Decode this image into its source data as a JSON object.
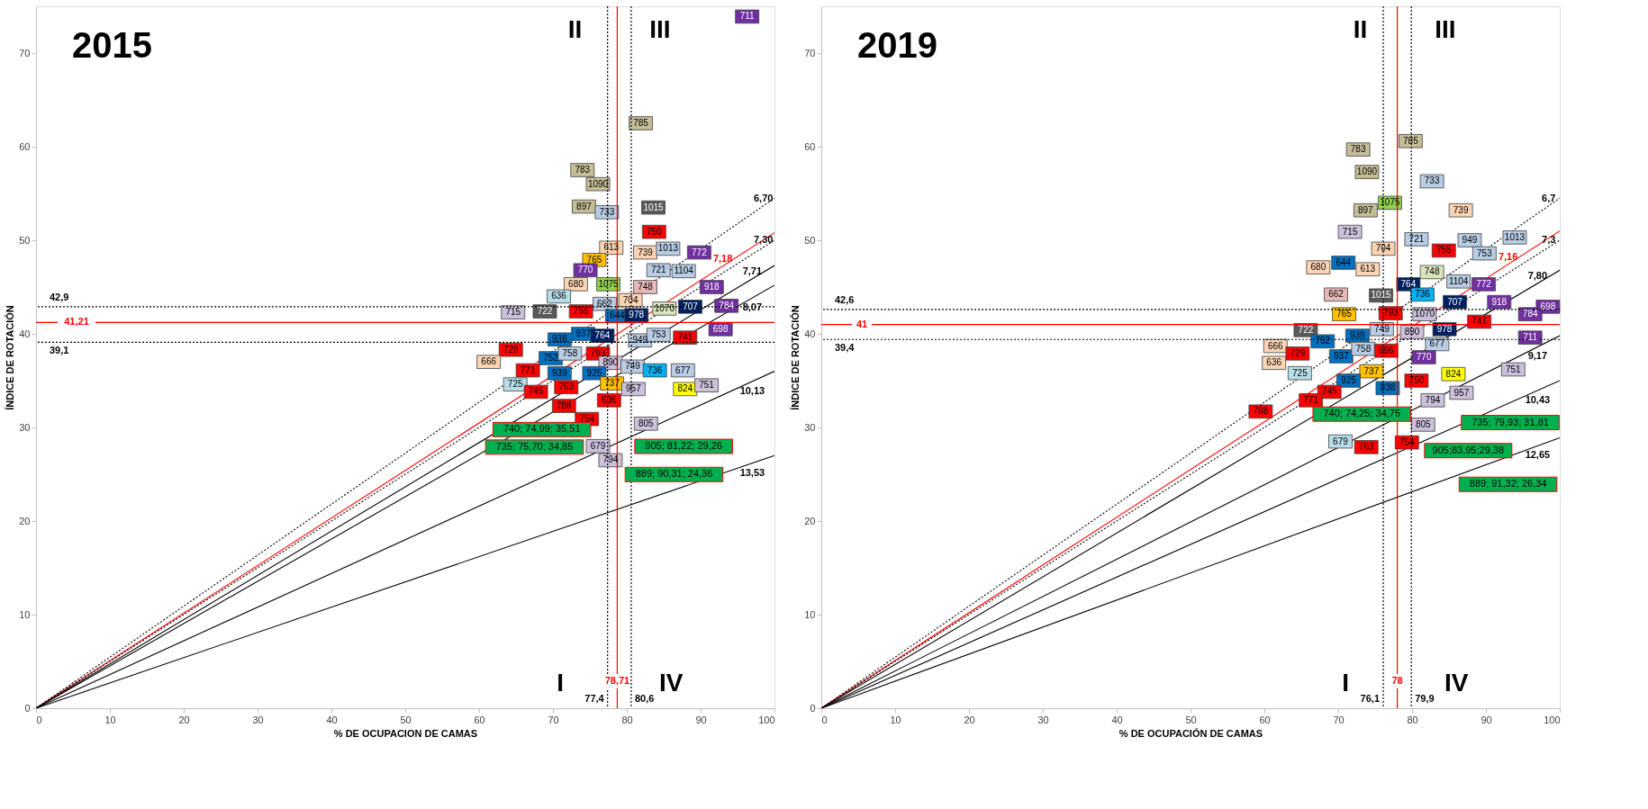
{
  "chart_data": [
    {
      "type": "scatter",
      "title": "2015",
      "xlabel": "% DE OCUPACION DE CAMAS",
      "ylabel": "ÍNDICE DE ROTACIÓN",
      "xlim": [
        0,
        100
      ],
      "ylim": [
        0,
        75
      ],
      "xticks": [
        0,
        10,
        20,
        30,
        40,
        50,
        60,
        70,
        80,
        90,
        100
      ],
      "yticks": [
        0,
        10,
        20,
        30,
        40,
        50,
        60,
        70
      ],
      "grid": false,
      "series": [
        {
          "type": "line",
          "name": "6,70",
          "color": "#000000",
          "line_style": "dotted",
          "x": [
            0,
            100
          ],
          "values": [
            0,
            54.5
          ]
        },
        {
          "type": "line",
          "name": "7,18",
          "color": "#ff0000",
          "line_style": "solid",
          "x": [
            0,
            100
          ],
          "values": [
            0,
            50.8
          ]
        },
        {
          "type": "line",
          "name": "7,30",
          "color": "#000000",
          "line_style": "dotted",
          "x": [
            0,
            100
          ],
          "values": [
            0,
            50.0
          ]
        },
        {
          "type": "line",
          "name": "7,71",
          "color": "#000000",
          "line_style": "solid",
          "x": [
            0,
            100
          ],
          "values": [
            0,
            47.3
          ]
        },
        {
          "type": "line",
          "name": "8,07",
          "color": "#000000",
          "line_style": "solid",
          "x": [
            0,
            100
          ],
          "values": [
            0,
            45.2
          ]
        },
        {
          "type": "line",
          "name": "10,13",
          "color": "#000000",
          "line_style": "solid",
          "x": [
            0,
            100
          ],
          "values": [
            0,
            36.0
          ]
        },
        {
          "type": "line",
          "name": "13,53",
          "color": "#000000",
          "line_style": "solid",
          "x": [
            0,
            100
          ],
          "values": [
            0,
            27.0
          ]
        },
        {
          "marker": "square",
          "x": [
            96.3,
            81.9,
            74.0,
            76.1,
            74.2,
            77.3,
            83.6,
            83.7,
            77.9,
            75.6,
            82.5,
            85.6,
            89.8,
            74.4,
            84.3,
            87.7,
            73.1,
            77.5,
            82.5,
            91.5,
            70.8,
            77.0,
            80.5,
            64.6,
            68.9,
            73.8,
            85.1,
            88.6,
            93.5,
            78.7,
            81.3,
            92.7,
            74.1,
            76.7,
            70.9,
            81.8,
            84.3,
            87.9,
            64.3,
            61.3,
            69.7,
            72.3,
            76.1,
            77.8,
            66.6,
            70.9,
            75.6,
            80.8,
            83.8,
            87.6,
            64.9,
            67.7,
            71.8,
            78.0,
            80.9,
            87.9,
            90.8,
            77.6,
            71.5,
            74.6,
            82.6,
            76.1,
            77.8
          ],
          "values": [
            73.9,
            62.5,
            57.5,
            56.0,
            53.6,
            53.0,
            53.5,
            50.9,
            49.2,
            47.9,
            48.7,
            49.1,
            48.7,
            46.8,
            46.8,
            46.7,
            45.3,
            45.3,
            45.0,
            45.0,
            44.0,
            43.2,
            43.6,
            42.3,
            42.4,
            42.4,
            42.7,
            42.9,
            43.0,
            41.9,
            42.0,
            40.5,
            40.0,
            39.8,
            39.4,
            39.3,
            39.9,
            39.6,
            38.3,
            37.0,
            37.4,
            37.9,
            37.9,
            36.9,
            36.1,
            35.8,
            35.8,
            36.5,
            36.1,
            36.1,
            34.6,
            33.8,
            34.3,
            34.7,
            34.1,
            34.1,
            34.5,
            32.9,
            32.3,
            30.9,
            30.4,
            28.0,
            26.5
          ],
          "colors": [
            "#7030a0",
            "#c4bd97",
            "#c4bd97",
            "#c4bd97",
            "#c4bd97",
            "#b8cce4",
            "#595959",
            "#ff0000",
            "#fbd4b4",
            "#ffc000",
            "#fbd4b4",
            "#b8cce4",
            "#7030a0",
            "#7030a0",
            "#b8cce4",
            "#b8cce4",
            "#fbd4b4",
            "#92d050",
            "#e6b9b8",
            "#7030a0",
            "#b7dee8",
            "#b8cce4",
            "#fbd4b4",
            "#ccc0da",
            "#595959",
            "#ff0000",
            "#d8e4bc",
            "#002060",
            "#7030a0",
            "#0070c0",
            "#002060",
            "#7030a0",
            "#0070c0",
            "#002060",
            "#0070c0",
            "#b8cce4",
            "#b8cce4",
            "#ff0000",
            "#ff0000",
            "#fbd4b4",
            "#0070c0",
            "#b8cce4",
            "#ff0000",
            "#ccc0da",
            "#ff0000",
            "#0070c0",
            "#0070c0",
            "#b8cce4",
            "#00b0f0",
            "#b8cce4",
            "#b7dee8",
            "#ff0000",
            "#ff0000",
            "#ffc000",
            "#ccc0da",
            "#ffff00",
            "#ccc0da",
            "#ff0000",
            "#ff0000",
            "#ff0000",
            "#ccc0da",
            "#ccc0da",
            "#ccc0da"
          ]
        }
      ],
      "ref_lines": [
        {
          "axis": "x",
          "value": 77.4,
          "label": "77,4",
          "color": "#000000",
          "line_style": "dotted"
        },
        {
          "axis": "x",
          "value": 78.71,
          "label": "78,71",
          "color": "#ff0000",
          "line_style": "solid"
        },
        {
          "axis": "x",
          "value": 80.6,
          "label": "80,6",
          "color": "#000000",
          "line_style": "dotted"
        },
        {
          "axis": "y",
          "value": 42.9,
          "label": "42,9",
          "color": "#000000",
          "line_style": "dotted"
        },
        {
          "axis": "y",
          "value": 41.21,
          "label": "41,21",
          "color": "#ff0000",
          "line_style": "solid"
        },
        {
          "axis": "y",
          "value": 39.1,
          "label": "39,1",
          "color": "#000000",
          "line_style": "dotted"
        }
      ],
      "annotations": [
        "I",
        "II",
        "III",
        "IV",
        "740; 74,99; 35,51",
        "735; 75,70; 34,85",
        "905; 81,22; 29,26",
        "889; 90,31; 24,36",
        {
          "text": "711",
          "x": 96.3,
          "y": 73.9
        },
        {
          "text": "785",
          "x": 81.9,
          "y": 62.5
        },
        {
          "text": "783",
          "x": 74.0,
          "y": 57.5
        },
        {
          "text": "1090",
          "x": 76.1,
          "y": 56.0
        },
        {
          "text": "897",
          "x": 74.2,
          "y": 53.6
        },
        {
          "text": "733",
          "x": 77.3,
          "y": 53.0
        },
        {
          "text": "1015",
          "x": 83.6,
          "y": 53.5
        },
        {
          "text": "750",
          "x": 83.7,
          "y": 50.9
        },
        {
          "text": "613",
          "x": 77.9,
          "y": 49.2
        },
        {
          "text": "765",
          "x": 75.6,
          "y": 47.9
        },
        {
          "text": "739",
          "x": 82.5,
          "y": 48.7
        },
        {
          "text": "1013",
          "x": 85.6,
          "y": 49.1
        },
        {
          "text": "772",
          "x": 89.8,
          "y": 48.7
        },
        {
          "text": "770",
          "x": 74.4,
          "y": 46.8
        },
        {
          "text": "721",
          "x": 84.3,
          "y": 46.8
        },
        {
          "text": "1104",
          "x": 87.7,
          "y": 46.7
        },
        {
          "text": "680",
          "x": 73.1,
          "y": 45.3
        },
        {
          "text": "1075",
          "x": 77.5,
          "y": 45.3
        },
        {
          "text": "748",
          "x": 82.5,
          "y": 45.0
        },
        {
          "text": "918",
          "x": 91.5,
          "y": 45.0
        },
        {
          "text": "636",
          "x": 70.8,
          "y": 44.0
        },
        {
          "text": "662",
          "x": 77.0,
          "y": 43.2
        },
        {
          "text": "704",
          "x": 80.5,
          "y": 43.6
        },
        {
          "text": "715",
          "x": 64.6,
          "y": 42.3
        },
        {
          "text": "722",
          "x": 68.9,
          "y": 42.4
        },
        {
          "text": "755",
          "x": 73.8,
          "y": 42.4
        },
        {
          "text": "1070",
          "x": 85.1,
          "y": 42.7
        },
        {
          "text": "707",
          "x": 88.6,
          "y": 42.9
        },
        {
          "text": "784",
          "x": 93.5,
          "y": 43.0
        },
        {
          "text": "644",
          "x": 78.7,
          "y": 41.9
        },
        {
          "text": "978",
          "x": 81.3,
          "y": 42.0
        },
        {
          "text": "698",
          "x": 92.7,
          "y": 40.5
        },
        {
          "text": "937",
          "x": 74.1,
          "y": 40.0
        },
        {
          "text": "764",
          "x": 76.7,
          "y": 39.8
        },
        {
          "text": "938",
          "x": 70.9,
          "y": 39.4
        },
        {
          "text": "949",
          "x": 81.8,
          "y": 39.3
        },
        {
          "text": "753",
          "x": 84.3,
          "y": 39.9
        },
        {
          "text": "741",
          "x": 87.9,
          "y": 39.6
        },
        {
          "text": "729",
          "x": 64.3,
          "y": 38.3
        },
        {
          "text": "666",
          "x": 61.3,
          "y": 37.0
        },
        {
          "text": "752",
          "x": 69.7,
          "y": 37.4
        },
        {
          "text": "758",
          "x": 72.3,
          "y": 37.9
        },
        {
          "text": "793",
          "x": 76.1,
          "y": 37.9
        },
        {
          "text": "890",
          "x": 77.8,
          "y": 36.9
        },
        {
          "text": "771",
          "x": 66.6,
          "y": 36.1
        },
        {
          "text": "939",
          "x": 70.9,
          "y": 35.8
        },
        {
          "text": "925",
          "x": 75.6,
          "y": 35.8
        },
        {
          "text": "749",
          "x": 80.8,
          "y": 36.5
        },
        {
          "text": "736",
          "x": 83.8,
          "y": 36.1
        },
        {
          "text": "677",
          "x": 87.6,
          "y": 36.1
        },
        {
          "text": "725",
          "x": 64.9,
          "y": 34.6
        },
        {
          "text": "745",
          "x": 67.7,
          "y": 33.8
        },
        {
          "text": "763",
          "x": 71.8,
          "y": 34.3
        },
        {
          "text": "737",
          "x": 78.0,
          "y": 34.7
        },
        {
          "text": "957",
          "x": 80.9,
          "y": 34.1
        },
        {
          "text": "824",
          "x": 87.9,
          "y": 34.1
        },
        {
          "text": "751",
          "x": 90.8,
          "y": 34.5
        },
        {
          "text": "696",
          "x": 77.6,
          "y": 32.9
        },
        {
          "text": "788",
          "x": 71.5,
          "y": 32.3
        },
        {
          "text": "754",
          "x": 74.6,
          "y": 30.9
        },
        {
          "text": "805",
          "x": 82.6,
          "y": 30.4
        },
        {
          "text": "679",
          "x": 76.1,
          "y": 28.0
        },
        {
          "text": "794",
          "x": 77.8,
          "y": 26.5
        }
      ]
    },
    {
      "type": "scatter",
      "title": "2019",
      "xlabel": "% DE OCUPACIÓN  DE CAMAS",
      "ylabel": "ÍNDICE DE ROTACIÓN",
      "xlim": [
        0,
        100
      ],
      "ylim": [
        0,
        75
      ],
      "xticks": [
        0,
        10,
        20,
        30,
        40,
        50,
        60,
        70,
        80,
        90,
        100
      ],
      "yticks": [
        0,
        10,
        20,
        30,
        40,
        50,
        60,
        70
      ],
      "grid": false,
      "series": [
        {
          "type": "line",
          "name": "6,7",
          "color": "#000000",
          "line_style": "dotted",
          "x": [
            0,
            100
          ],
          "values": [
            0,
            54.5
          ]
        },
        {
          "type": "line",
          "name": "7,16",
          "color": "#ff0000",
          "line_style": "solid",
          "x": [
            0,
            100
          ],
          "values": [
            0,
            51.0
          ]
        },
        {
          "type": "line",
          "name": "7,3",
          "color": "#000000",
          "line_style": "dotted",
          "x": [
            0,
            100
          ],
          "values": [
            0,
            50.0
          ]
        },
        {
          "type": "line",
          "name": "7,80",
          "color": "#000000",
          "line_style": "solid",
          "x": [
            0,
            100
          ],
          "values": [
            0,
            46.8
          ]
        },
        {
          "type": "line",
          "name": "9,17",
          "color": "#000000",
          "line_style": "solid",
          "x": [
            0,
            100
          ],
          "values": [
            0,
            39.8
          ]
        },
        {
          "type": "line",
          "name": "10,43",
          "color": "#000000",
          "line_style": "solid",
          "x": [
            0,
            100
          ],
          "values": [
            0,
            35.0
          ]
        },
        {
          "type": "line",
          "name": "12,65",
          "color": "#000000",
          "line_style": "solid",
          "x": [
            0,
            100
          ],
          "values": [
            0,
            28.9
          ]
        },
        {
          "marker": "square",
          "x": [
            79.8,
            72.7,
            73.9,
            82.7,
            77.0,
            73.7,
            71.6,
            86.6,
            80.6,
            87.8,
            93.9,
            84.3,
            89.8,
            76.1,
            67.3,
            70.7,
            74.0,
            82.7,
            79.5,
            86.3,
            89.7,
            69.7,
            75.8,
            81.4,
            85.8,
            91.8,
            98.4,
            70.8,
            77.1,
            81.7,
            96.0,
            89.1,
            65.6,
            75.9,
            80.0,
            84.4,
            96.0,
            67.9,
            72.6,
            61.5,
            64.5,
            70.4,
            73.4,
            76.5,
            83.4,
            81.6,
            61.3,
            64.8,
            74.5,
            85.6,
            93.7,
            71.4,
            80.6,
            76.7,
            86.7,
            68.8,
            66.3,
            82.8,
            59.5,
            81.5,
            70.3,
            73.8,
            79.3
          ],
          "values": [
            60.6,
            59.7,
            57.3,
            56.3,
            54.0,
            53.2,
            50.9,
            53.2,
            50.1,
            50.0,
            50.3,
            48.9,
            48.6,
            49.1,
            47.1,
            47.6,
            46.9,
            46.6,
            45.3,
            45.6,
            45.3,
            44.2,
            44.1,
            44.2,
            43.4,
            43.4,
            42.9,
            42.1,
            42.2,
            42.1,
            42.1,
            41.3,
            40.4,
            40.5,
            40.2,
            40.5,
            39.6,
            39.2,
            39.8,
            38.7,
            37.9,
            37.6,
            38.4,
            38.2,
            38.9,
            37.5,
            36.9,
            35.8,
            36.0,
            35.7,
            36.2,
            35.0,
            35.0,
            34.2,
            33.7,
            33.8,
            32.9,
            32.9,
            31.7,
            30.3,
            28.5,
            27.9,
            28.4
          ],
          "colors": [
            "#c4bd97",
            "#c4bd97",
            "#c4bd97",
            "#b8cce4",
            "#92d050",
            "#c4bd97",
            "#ccc0da",
            "#fbd4b4",
            "#b8cce4",
            "#b8cce4",
            "#b8cce4",
            "#ff0000",
            "#b8cce4",
            "#fbd4b4",
            "#fbd4b4",
            "#0070c0",
            "#fbd4b4",
            "#d8e4bc",
            "#002060",
            "#b8cce4",
            "#7030a0",
            "#e6b9b8",
            "#595959",
            "#00b0f0",
            "#002060",
            "#7030a0",
            "#7030a0",
            "#ffc000",
            "#ff0000",
            "#ccc0da",
            "#7030a0",
            "#ff0000",
            "#595959",
            "#b8cce4",
            "#ccc0da",
            "#002060",
            "#7030a0",
            "#0070c0",
            "#0070c0",
            "#fbd4b4",
            "#ff0000",
            "#0070c0",
            "#b8cce4",
            "#ff0000",
            "#b8cce4",
            "#7030a0",
            "#fbd4b4",
            "#b7dee8",
            "#ffc000",
            "#ffff00",
            "#ccc0da",
            "#0070c0",
            "#ff0000",
            "#0070c0",
            "#ccc0da",
            "#ff0000",
            "#ff0000",
            "#ccc0da",
            "#ff0000",
            "#ccc0da",
            "#b7dee8",
            "#ff0000",
            "#ff0000"
          ]
        }
      ],
      "ref_lines": [
        {
          "axis": "x",
          "value": 76.1,
          "label": "76,1",
          "color": "#000000",
          "line_style": "dotted"
        },
        {
          "axis": "x",
          "value": 78,
          "label": "78",
          "color": "#ff0000",
          "line_style": "solid"
        },
        {
          "axis": "x",
          "value": 79.9,
          "label": "79,9",
          "color": "#000000",
          "line_style": "dotted"
        },
        {
          "axis": "y",
          "value": 42.6,
          "label": "42,6",
          "color": "#000000",
          "line_style": "dotted"
        },
        {
          "axis": "y",
          "value": 41,
          "label": "41",
          "color": "#ff0000",
          "line_style": "solid"
        },
        {
          "axis": "y",
          "value": 39.4,
          "label": "39,4",
          "color": "#000000",
          "line_style": "dotted"
        }
      ],
      "annotations": [
        "I",
        "II",
        "III",
        "IV",
        "740; 74,25; 34,75",
        "735; 79,93; 31,81",
        "905;83,95;29,38",
        "889; 91,32; 26,34",
        {
          "text": "785",
          "x": 79.8,
          "y": 60.6
        },
        {
          "text": "783",
          "x": 72.7,
          "y": 59.7
        },
        {
          "text": "1090",
          "x": 73.9,
          "y": 57.3
        },
        {
          "text": "733",
          "x": 82.7,
          "y": 56.3
        },
        {
          "text": "1075",
          "x": 77.0,
          "y": 54.0
        },
        {
          "text": "897",
          "x": 73.7,
          "y": 53.2
        },
        {
          "text": "715",
          "x": 71.6,
          "y": 50.9
        },
        {
          "text": "739",
          "x": 86.6,
          "y": 53.2
        },
        {
          "text": "721",
          "x": 80.6,
          "y": 50.1
        },
        {
          "text": "949",
          "x": 87.8,
          "y": 50.0
        },
        {
          "text": "1013",
          "x": 93.9,
          "y": 50.3
        },
        {
          "text": "755",
          "x": 84.3,
          "y": 48.9
        },
        {
          "text": "753",
          "x": 89.8,
          "y": 48.6
        },
        {
          "text": "704",
          "x": 76.1,
          "y": 49.1
        },
        {
          "text": "680",
          "x": 67.3,
          "y": 47.1
        },
        {
          "text": "644",
          "x": 70.7,
          "y": 47.6
        },
        {
          "text": "613",
          "x": 74.0,
          "y": 46.9
        },
        {
          "text": "748",
          "x": 82.7,
          "y": 46.6
        },
        {
          "text": "764",
          "x": 79.5,
          "y": 45.3
        },
        {
          "text": "1104",
          "x": 86.3,
          "y": 45.6
        },
        {
          "text": "772",
          "x": 89.7,
          "y": 45.3
        },
        {
          "text": "662",
          "x": 69.7,
          "y": 44.2
        },
        {
          "text": "1015",
          "x": 75.8,
          "y": 44.1
        },
        {
          "text": "736",
          "x": 81.4,
          "y": 44.2
        },
        {
          "text": "707",
          "x": 85.8,
          "y": 43.4
        },
        {
          "text": "918",
          "x": 91.8,
          "y": 43.4
        },
        {
          "text": "698",
          "x": 98.4,
          "y": 42.9
        },
        {
          "text": "765",
          "x": 70.8,
          "y": 42.1
        },
        {
          "text": "793",
          "x": 77.1,
          "y": 42.2
        },
        {
          "text": "1070",
          "x": 81.7,
          "y": 42.1
        },
        {
          "text": "784",
          "x": 96.0,
          "y": 42.1
        },
        {
          "text": "741",
          "x": 89.1,
          "y": 41.3
        },
        {
          "text": "722",
          "x": 65.6,
          "y": 40.4
        },
        {
          "text": "749",
          "x": 75.9,
          "y": 40.5
        },
        {
          "text": "890",
          "x": 80.0,
          "y": 40.2
        },
        {
          "text": "978",
          "x": 84.4,
          "y": 40.5
        },
        {
          "text": "711",
          "x": 96.0,
          "y": 39.6
        },
        {
          "text": "752",
          "x": 67.9,
          "y": 39.2
        },
        {
          "text": "939",
          "x": 72.6,
          "y": 39.8
        },
        {
          "text": "666",
          "x": 61.5,
          "y": 38.7
        },
        {
          "text": "729",
          "x": 64.5,
          "y": 37.9
        },
        {
          "text": "937",
          "x": 70.4,
          "y": 37.6
        },
        {
          "text": "758",
          "x": 73.4,
          "y": 38.4
        },
        {
          "text": "696",
          "x": 76.5,
          "y": 38.2
        },
        {
          "text": "677",
          "x": 83.4,
          "y": 38.9
        },
        {
          "text": "770",
          "x": 81.6,
          "y": 37.5
        },
        {
          "text": "636",
          "x": 61.3,
          "y": 36.9
        },
        {
          "text": "725",
          "x": 64.8,
          "y": 35.8
        },
        {
          "text": "737",
          "x": 74.5,
          "y": 36.0
        },
        {
          "text": "824",
          "x": 85.6,
          "y": 35.7
        },
        {
          "text": "751",
          "x": 93.7,
          "y": 36.2
        },
        {
          "text": "925",
          "x": 71.4,
          "y": 35.0
        },
        {
          "text": "750",
          "x": 80.6,
          "y": 35.0
        },
        {
          "text": "938",
          "x": 76.7,
          "y": 34.2
        },
        {
          "text": "957",
          "x": 86.7,
          "y": 33.7
        },
        {
          "text": "745",
          "x": 68.8,
          "y": 33.8
        },
        {
          "text": "771",
          "x": 66.3,
          "y": 32.9
        },
        {
          "text": "794",
          "x": 82.8,
          "y": 32.9
        },
        {
          "text": "788",
          "x": 59.5,
          "y": 31.7
        },
        {
          "text": "805",
          "x": 81.5,
          "y": 30.3
        },
        {
          "text": "679",
          "x": 70.3,
          "y": 28.5
        },
        {
          "text": "763",
          "x": 73.8,
          "y": 27.9
        },
        {
          "text": "754",
          "x": 79.3,
          "y": 28.4
        }
      ]
    }
  ]
}
